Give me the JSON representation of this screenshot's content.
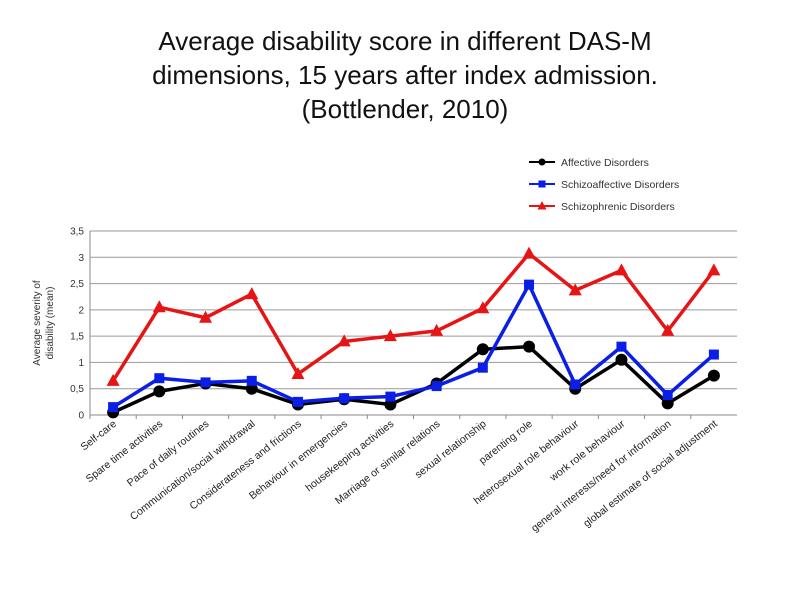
{
  "title": {
    "line1": "Average disability score in different DAS-M",
    "line2": "dimensions, 15 years after index admission.",
    "line3": "(Bottlender, 2010)"
  },
  "chart_data": {
    "type": "line",
    "ylabel_line1": "Average severity of",
    "ylabel_line2": "disability (mean)",
    "xlabel": "",
    "ylim": [
      0,
      3.5
    ],
    "yticks": [
      "0",
      "0,5",
      "1",
      "1,5",
      "2",
      "2,5",
      "3",
      "3,5"
    ],
    "grid": true,
    "legend_position": "top-right",
    "categories": [
      "Self-care",
      "Spare time activities",
      "Pace of daily routines",
      "Communication/social withdrawal",
      "Considerateness and frictions",
      "Behaviour in emergencies",
      "housekeeping activities",
      "Marriage or similar relations",
      "sexual relationship",
      "parenting role",
      "heterosexual role behaviour",
      "work role behaviour",
      "general interests/need for information",
      "global estimate of social adjustment"
    ],
    "series": [
      {
        "name": "Affective Disorders",
        "color": "#000000",
        "marker": "circle",
        "values": [
          0.05,
          0.45,
          0.6,
          0.5,
          0.2,
          0.3,
          0.2,
          0.6,
          1.25,
          1.3,
          0.5,
          1.05,
          0.22,
          0.75
        ]
      },
      {
        "name": "Schizoaffective Disorders",
        "color": "#0a1ee6",
        "marker": "square",
        "values": [
          0.15,
          0.7,
          0.62,
          0.65,
          0.25,
          0.32,
          0.35,
          0.55,
          0.9,
          2.48,
          0.58,
          1.3,
          0.38,
          1.15
        ]
      },
      {
        "name": "Schizophrenic Disorders",
        "color": "#e61414",
        "marker": "triangle",
        "values": [
          0.65,
          2.05,
          1.85,
          2.3,
          0.78,
          1.4,
          1.5,
          1.6,
          2.03,
          3.07,
          2.37,
          2.75,
          1.6,
          2.75
        ]
      }
    ]
  }
}
